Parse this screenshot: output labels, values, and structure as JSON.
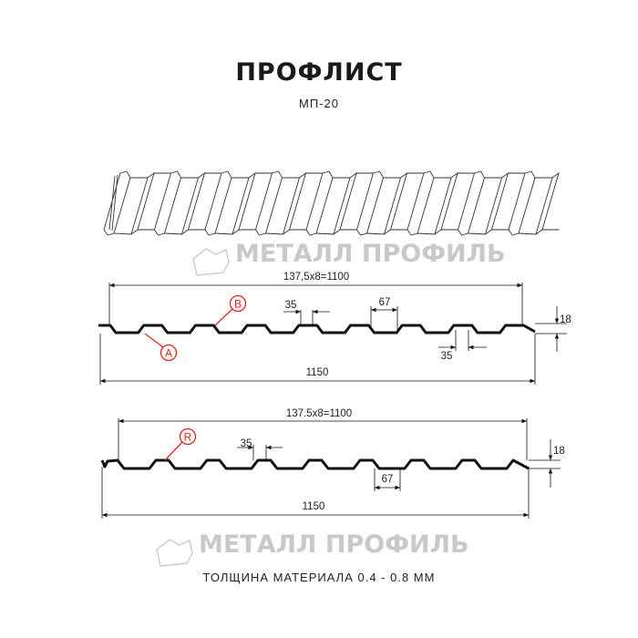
{
  "title": "ПРОФЛИСТ",
  "subtitle": "МП-20",
  "footer": "ТОЛЩИНА МАТЕРИАЛА 0.4 - 0.8 ММ",
  "watermark": {
    "text": "МЕТАЛЛ ПРОФИЛЬ",
    "color": "#c9c9c9"
  },
  "profile1": {
    "pitch_label": "137,5x8=1100",
    "width_label": "1150",
    "top_width_label": "35",
    "bottom_width_label": "35",
    "rib_label": "67",
    "height_label": "18",
    "callout_a": "A",
    "callout_b": "B"
  },
  "profile2": {
    "pitch_label": "137.5x8=1100",
    "width_label": "1150",
    "top_width_label": "35",
    "rib_label": "67",
    "height_label": "18",
    "callout_r": "R"
  },
  "colors": {
    "line": "#111111",
    "callout": "#e8231f"
  }
}
